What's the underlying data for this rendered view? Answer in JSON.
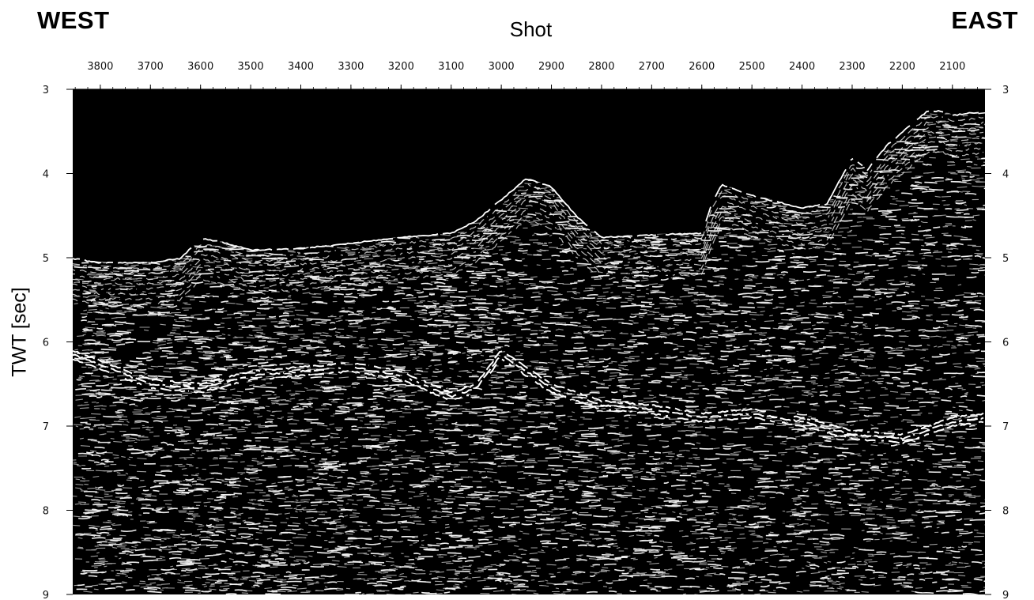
{
  "labels": {
    "west": "WEST",
    "east": "EAST"
  },
  "chart_data": {
    "type": "heatmap",
    "title": "",
    "xlabel": "Shot",
    "ylabel": "TWT [sec]",
    "x_ticks": [
      3800,
      3700,
      3600,
      3500,
      3400,
      3300,
      3200,
      3100,
      3000,
      2900,
      2800,
      2700,
      2600,
      2500,
      2400,
      2300,
      2200,
      2100
    ],
    "y_ticks": [
      3,
      4,
      5,
      6,
      7,
      8,
      9
    ],
    "xlim": [
      3855,
      2035
    ],
    "ylim": [
      3,
      9
    ],
    "x_reversed": true,
    "y_inverted": true,
    "grid": false,
    "colormap": "grayscale seismic amplitude (white on black)",
    "seafloor_horizon": {
      "shot": [
        3855,
        3800,
        3700,
        3640,
        3600,
        3560,
        3500,
        3400,
        3300,
        3200,
        3100,
        3050,
        3000,
        2950,
        2900,
        2850,
        2800,
        2700,
        2600,
        2580,
        2560,
        2500,
        2400,
        2350,
        2300,
        2270,
        2230,
        2200,
        2150,
        2120,
        2100,
        2035
      ],
      "twt": [
        5.0,
        5.05,
        5.05,
        5.0,
        4.76,
        4.8,
        4.9,
        4.88,
        4.82,
        4.75,
        4.7,
        4.55,
        4.3,
        4.05,
        4.15,
        4.5,
        4.75,
        4.72,
        4.7,
        4.35,
        4.12,
        4.25,
        4.4,
        4.35,
        3.8,
        3.95,
        3.65,
        3.5,
        3.25,
        3.25,
        3.3,
        3.25
      ]
    },
    "strong_reflector": {
      "shot": [
        3855,
        3700,
        3600,
        3500,
        3400,
        3300,
        3200,
        3100,
        3050,
        3000,
        2950,
        2900,
        2800,
        2700,
        2600,
        2500,
        2400,
        2300,
        2200,
        2100,
        2035
      ],
      "twt": [
        6.1,
        6.45,
        6.5,
        6.35,
        6.3,
        6.25,
        6.35,
        6.6,
        6.5,
        6.1,
        6.3,
        6.5,
        6.7,
        6.75,
        6.85,
        6.8,
        6.9,
        7.05,
        7.1,
        6.9,
        6.85
      ]
    }
  }
}
